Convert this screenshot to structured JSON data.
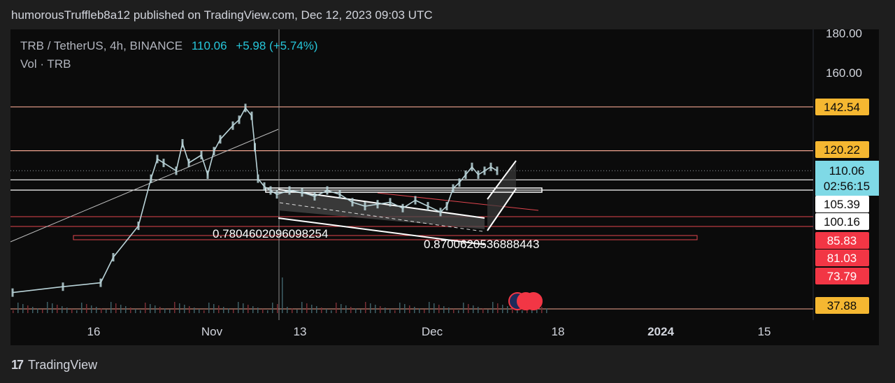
{
  "header": {
    "text": "humorousTruffleb8a12 published on TradingView.com, Dec 12, 2023 09:03 UTC"
  },
  "legend": {
    "symbol": "TRB / TetherUS, 4h, BINANCE",
    "price": "110.06",
    "change": "+5.98 (+5.74%)",
    "volume": "Vol · TRB"
  },
  "footer": {
    "brand": "TradingView",
    "logo_icon": "tradingview-logo-icon"
  },
  "colors": {
    "background": "#0b0b0b",
    "candle": "#b9d3d8",
    "horizontal_orange": "#f2a58f",
    "horizontal_red": "#e0454e",
    "horizontal_white": "#ffffff",
    "channel_fill": "#4a4a4a",
    "badge_orange": "#f5b731",
    "badge_red": "#f23645",
    "badge_cyan": "#7fd9e6"
  },
  "chart_data": {
    "type": "line",
    "title": "TRB / TetherUS, 4h, BINANCE",
    "x_ticks": [
      "16",
      "Nov",
      "13",
      "Dec",
      "18",
      "2024",
      "15"
    ],
    "y_ticks": [
      "180.00",
      "160.00"
    ],
    "ylim": [
      34,
      182
    ],
    "x": [
      0,
      8,
      14,
      16,
      20,
      22,
      23,
      24,
      26,
      27,
      28,
      30,
      31,
      32,
      33,
      35,
      36,
      37,
      38,
      38.5,
      39,
      40,
      41,
      42,
      44,
      46,
      48,
      50,
      52,
      54,
      56,
      58,
      60,
      62,
      64,
      66,
      68,
      69,
      70,
      71,
      72,
      73,
      74,
      75,
      76,
      77
    ],
    "price": [
      48,
      51,
      53,
      66,
      82,
      106,
      116,
      114,
      110,
      124,
      114,
      118,
      108,
      120,
      126,
      133,
      136,
      142,
      138,
      122,
      106,
      102,
      100,
      98,
      100,
      99,
      97,
      100,
      98,
      94,
      92,
      93,
      94,
      91,
      95,
      92,
      89,
      92,
      101,
      104,
      108,
      112,
      108,
      110,
      112,
      110
    ],
    "series": [],
    "price_levels": [
      {
        "label": "142.54",
        "value": 142.54,
        "color": "#f5b731",
        "kind": "horizontal"
      },
      {
        "label": "120.22",
        "value": 120.22,
        "color": "#f5b731",
        "kind": "horizontal"
      },
      {
        "label": "110.06",
        "value": 110.06,
        "color": "#7fd9e6",
        "kind": "last-price",
        "countdown": "02:56:15"
      },
      {
        "label": "105.39",
        "value": 105.39,
        "color": "#ffffff",
        "kind": "horizontal"
      },
      {
        "label": "100.16",
        "value": 100.16,
        "color": "#ffffff",
        "kind": "horizontal"
      },
      {
        "label": "85.83",
        "value": 85.83,
        "color": "#f23645",
        "kind": "horizontal"
      },
      {
        "label": "81.03",
        "value": 81.03,
        "color": "#f23645",
        "kind": "horizontal"
      },
      {
        "label": "73.79",
        "value": 73.79,
        "color": "#f23645",
        "kind": "horizontal"
      },
      {
        "label": "37.88",
        "value": 37.88,
        "color": "#f5b731",
        "kind": "horizontal"
      }
    ],
    "annotations": [
      {
        "text": "0.780460209609825​4",
        "value": "0.7804602096098254"
      },
      {
        "text": "0.8700620536888443",
        "value": "0.8700620536888443"
      }
    ],
    "grid": false,
    "legend_position": "top-left"
  }
}
